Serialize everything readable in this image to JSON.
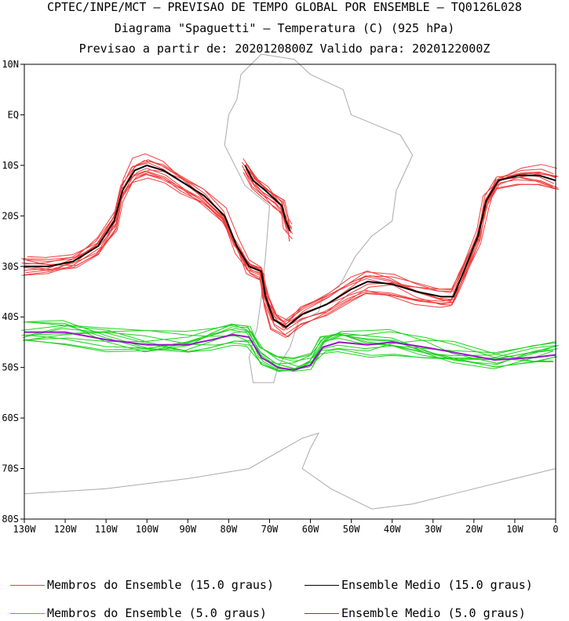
{
  "header": {
    "line1": "CPTEC/INPE/MCT – PREVISAO DE TEMPO GLOBAL POR ENSEMBLE – TQ0126L028",
    "line2": "Diagrama \"Spaguetti\" – Temperatura (C) (925 hPa)",
    "line3": "Previsao a partir de: 2020120800Z  Valido para: 2020122000Z"
  },
  "chart_data": {
    "type": "line",
    "map": "South America / South Atlantic",
    "xlim": [
      -130,
      0
    ],
    "ylim": [
      -80,
      10
    ],
    "x_ticks": [
      {
        "v": -130,
        "label": "130W"
      },
      {
        "v": -120,
        "label": "120W"
      },
      {
        "v": -110,
        "label": "110W"
      },
      {
        "v": -100,
        "label": "100W"
      },
      {
        "v": -90,
        "label": "90W"
      },
      {
        "v": -80,
        "label": "80W"
      },
      {
        "v": -70,
        "label": "70W"
      },
      {
        "v": -60,
        "label": "60W"
      },
      {
        "v": -50,
        "label": "50W"
      },
      {
        "v": -40,
        "label": "40W"
      },
      {
        "v": -30,
        "label": "30W"
      },
      {
        "v": -20,
        "label": "20W"
      },
      {
        "v": -10,
        "label": "10W"
      },
      {
        "v": 0,
        "label": "0"
      }
    ],
    "y_ticks": [
      {
        "v": 10,
        "label": "10N"
      },
      {
        "v": 0,
        "label": "EQ"
      },
      {
        "v": -10,
        "label": "10S"
      },
      {
        "v": -20,
        "label": "20S"
      },
      {
        "v": -30,
        "label": "30S"
      },
      {
        "v": -40,
        "label": "40S"
      },
      {
        "v": -50,
        "label": "50S"
      },
      {
        "v": -60,
        "label": "60S"
      },
      {
        "v": -70,
        "label": "70S"
      },
      {
        "v": -80,
        "label": "80S"
      }
    ],
    "colors": {
      "members15": "#f03c3c",
      "mean15": "#000000",
      "members5": "#1ed21e",
      "mean5": "#9614c8",
      "coast": "#aaaaaa"
    },
    "series": [
      {
        "name": "Ensemble Medio (15.0 graus)",
        "segments": [
          [
            [
              -130,
              -30
            ],
            [
              -124,
              -30
            ],
            [
              -118,
              -29
            ],
            [
              -112,
              -26
            ],
            [
              -108,
              -21
            ],
            [
              -106,
              -15
            ],
            [
              -103,
              -11
            ],
            [
              -100,
              -10
            ],
            [
              -96,
              -11
            ],
            [
              -91,
              -13.5
            ],
            [
              -86,
              -16
            ],
            [
              -81,
              -20
            ],
            [
              -78,
              -26
            ],
            [
              -75,
              -30
            ],
            [
              -72,
              -31
            ],
            [
              -71,
              -36
            ],
            [
              -69,
              -40.5
            ],
            [
              -66,
              -42
            ],
            [
              -62,
              -39.5
            ],
            [
              -56,
              -37.5
            ],
            [
              -50,
              -34.5
            ],
            [
              -46,
              -33
            ],
            [
              -40,
              -33.5
            ],
            [
              -34,
              -35
            ],
            [
              -28,
              -36
            ],
            [
              -25,
              -36
            ],
            [
              -23,
              -32
            ],
            [
              -19,
              -24
            ],
            [
              -17,
              -17
            ],
            [
              -14,
              -13
            ],
            [
              -9,
              -12
            ],
            [
              -4,
              -12
            ],
            [
              0,
              -13
            ]
          ],
          [
            [
              -76,
              -10
            ],
            [
              -74,
              -13
            ],
            [
              -71,
              -15
            ],
            [
              -69,
              -16.5
            ],
            [
              -67,
              -18
            ],
            [
              -66,
              -21
            ],
            [
              -65,
              -23
            ]
          ]
        ]
      },
      {
        "name": "Ensemble Medio (5.0 graus)",
        "segments": [
          [
            [
              -130,
              -43
            ],
            [
              -120,
              -43
            ],
            [
              -110,
              -44.5
            ],
            [
              -100,
              -45.5
            ],
            [
              -90,
              -45.5
            ],
            [
              -84,
              -44.5
            ],
            [
              -79,
              -43.5
            ],
            [
              -75,
              -44
            ],
            [
              -72,
              -48
            ],
            [
              -68,
              -50
            ],
            [
              -64,
              -50.5
            ],
            [
              -60,
              -49.5
            ],
            [
              -57,
              -46
            ],
            [
              -53,
              -45
            ],
            [
              -46,
              -45.5
            ],
            [
              -40,
              -45
            ],
            [
              -32,
              -46
            ],
            [
              -25,
              -47
            ],
            [
              -15,
              -48.5
            ],
            [
              -5,
              -48
            ],
            [
              0,
              -47.5
            ]
          ]
        ]
      }
    ],
    "legend": [
      {
        "label": "Membros do Ensemble (15.0 graus)",
        "color": "#f03c3c"
      },
      {
        "label": "Ensemble Medio (15.0 graus)",
        "color": "#000000"
      },
      {
        "label": "Membros do Ensemble (5.0 graus)",
        "color": "#1ed21e"
      },
      {
        "label": "Ensemble Medio (5.0 graus)",
        "color": "#9614c8"
      }
    ]
  }
}
